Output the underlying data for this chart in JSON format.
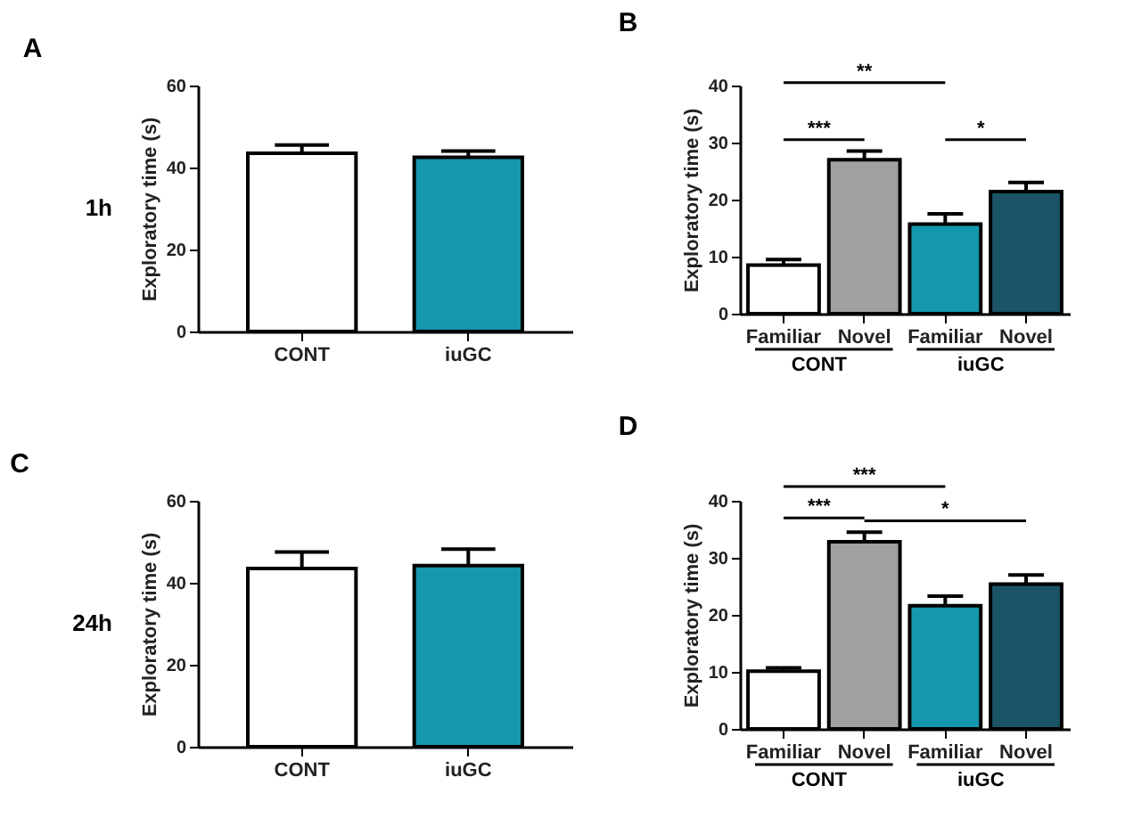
{
  "chart_data": [
    {
      "type": "bar",
      "title": "A",
      "ylabel": "Exploratory time (s)",
      "categories": [
        "CONT",
        "iuGC"
      ],
      "colors": [
        "#ffffff",
        "#1597ad"
      ],
      "values": [
        43.5,
        42.5
      ],
      "errors": [
        2,
        1.5
      ],
      "ylim": [
        0,
        60
      ],
      "yticks": [
        0,
        20,
        40,
        60
      ],
      "annotations": [
        "1h"
      ]
    },
    {
      "type": "bar",
      "title": "B",
      "ylabel": "Exploratory time (s)",
      "categories": [
        "Familiar",
        "Novel",
        "Familiar",
        "Novel"
      ],
      "colors": [
        "#ffffff",
        "#a0a0a0",
        "#1597ad",
        "#1b5466"
      ],
      "values": [
        8.5,
        27,
        15.7,
        21.4
      ],
      "errors": [
        1,
        1.5,
        1.8,
        1.6
      ],
      "ylim": [
        0,
        40
      ],
      "yticks": [
        0,
        10,
        20,
        30,
        40
      ],
      "annotations": [
        "**",
        "***",
        "*",
        "CONT",
        "iuGC"
      ]
    },
    {
      "type": "bar",
      "title": "C",
      "ylabel": "Exploratory time (s)",
      "categories": [
        "CONT",
        "iuGC"
      ],
      "colors": [
        "#ffffff",
        "#1597ad"
      ],
      "values": [
        43.5,
        44.2
      ],
      "errors": [
        4,
        4
      ],
      "ylim": [
        0,
        60
      ],
      "yticks": [
        0,
        20,
        40,
        60
      ],
      "annotations": [
        "24h"
      ]
    },
    {
      "type": "bar",
      "title": "D",
      "ylabel": "Exploratory time (s)",
      "categories": [
        "Familiar",
        "Novel",
        "Familiar",
        "Novel"
      ],
      "colors": [
        "#ffffff",
        "#a0a0a0",
        "#1597ad",
        "#1b5466"
      ],
      "values": [
        10.1,
        32.8,
        21.6,
        25.4
      ],
      "errors": [
        0.6,
        1.7,
        1.7,
        1.6
      ],
      "ylim": [
        0,
        40
      ],
      "yticks": [
        0,
        10,
        20,
        30,
        40
      ],
      "annotations": [
        "***",
        "***",
        "*",
        "CONT",
        "iuGC"
      ]
    }
  ]
}
